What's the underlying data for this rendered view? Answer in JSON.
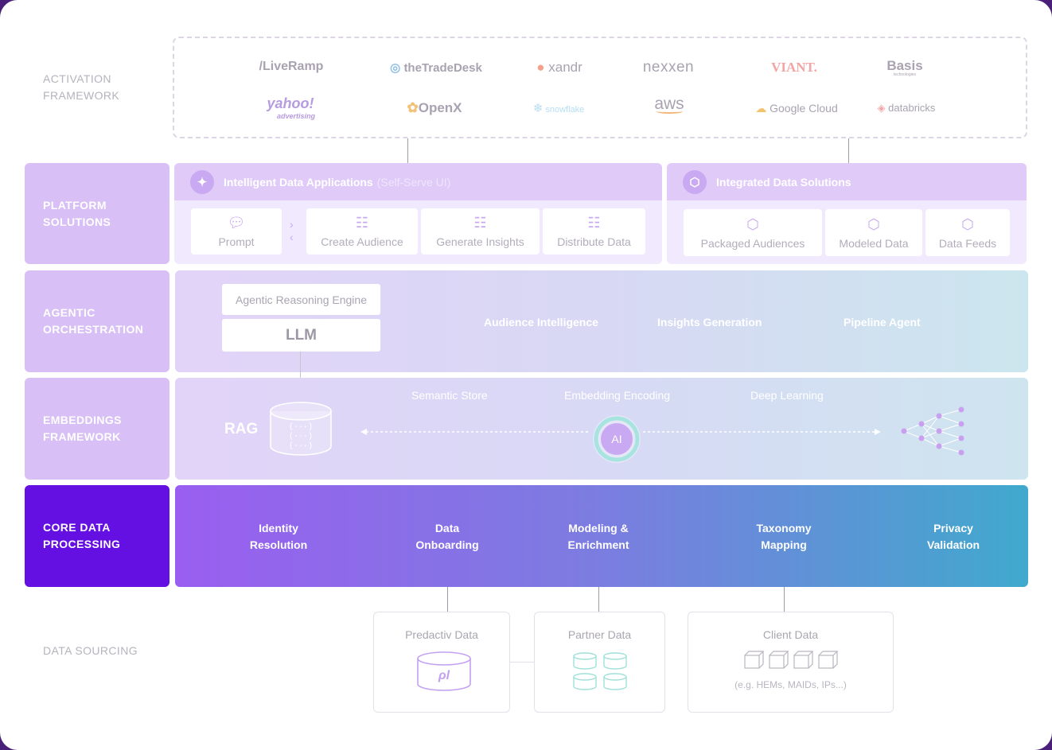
{
  "layers": {
    "activation": "ACTIVATION\nFRAMEWORK",
    "platform": "PLATFORM\nSOLUTIONS",
    "agentic": "AGENTIC\nORCHESTRATION",
    "embeddings": "EMBEDDINGS\nFRAMEWORK",
    "core": "CORE DATA\nPROCESSING",
    "sourcing": "DATA SOURCING"
  },
  "partners": [
    "/LiveRamp",
    "theTradeDesk",
    "xandr",
    "nexxen",
    "VIANT.",
    "Basis",
    "yahoo!",
    "OpenX",
    "snowflake",
    "aws",
    "Google Cloud",
    "databricks"
  ],
  "partner_extra": {
    "yahoo_sub": "advertising",
    "basis_sub": "technologies"
  },
  "platform": {
    "apps_title": "Intelligent Data Applications",
    "apps_subtitle": "(Self-Serve UI)",
    "prompt": "Prompt",
    "apps": [
      "Create Audience",
      "Generate Insights",
      "Distribute Data"
    ],
    "solutions_title": "Integrated Data Solutions",
    "solutions": [
      "Packaged Audiences",
      "Modeled Data",
      "Data Feeds"
    ]
  },
  "agentic": {
    "engine": "Agentic Reasoning Engine",
    "llm": "LLM",
    "agents": [
      "Audience Intelligence",
      "Insights Generation",
      "Pipeline Agent"
    ]
  },
  "embeddings": {
    "rag": "RAG",
    "steps": [
      "Semantic Store",
      "Embedding Encoding",
      "Deep Learning"
    ],
    "ai": "AI"
  },
  "core": {
    "steps": [
      "Identity\nResolution",
      "Data\nOnboarding",
      "Modeling &\nEnrichment",
      "Taxonomy\nMapping",
      "Privacy\nValidation"
    ]
  },
  "sourcing": {
    "predactiv": "Predactiv Data",
    "partner": "Partner Data",
    "client": "Client Data",
    "client_note": "(e.g. HEMs, MAIDs, IPs...)"
  },
  "colors": {
    "accent": "#6410e2",
    "label_bg": "#d8bff5",
    "icon": "#c8a8f0"
  }
}
